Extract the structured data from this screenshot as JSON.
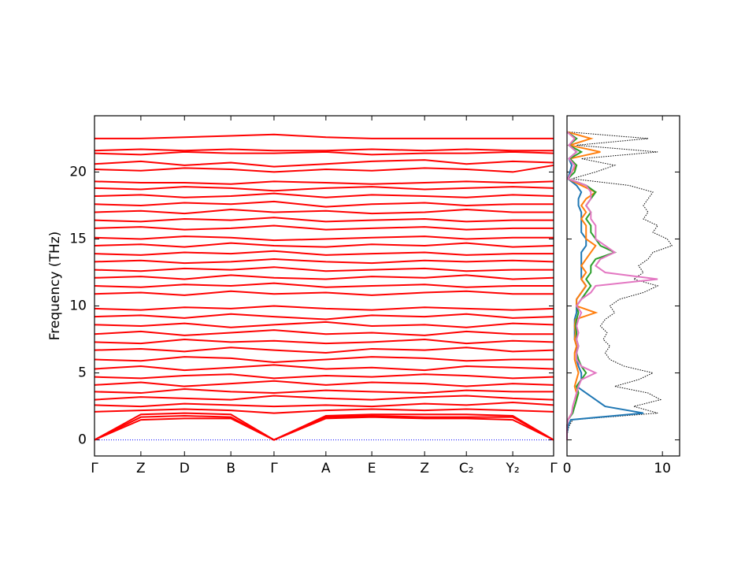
{
  "chart_data": [
    {
      "type": "line",
      "ylabel": "Frequency (THz)",
      "color": "#ff0000",
      "zero_line_color": "#0000ff",
      "x": [
        0,
        0.101,
        0.196,
        0.297,
        0.391,
        0.504,
        0.604,
        0.719,
        0.81,
        0.911,
        1
      ],
      "xlim": [
        0,
        1
      ],
      "xticks": [
        {
          "value": 0,
          "label": "Γ"
        },
        {
          "value": 0.101,
          "label": "Z"
        },
        {
          "value": 0.196,
          "label": "D"
        },
        {
          "value": 0.297,
          "label": "B"
        },
        {
          "value": 0.391,
          "label": "Γ"
        },
        {
          "value": 0.504,
          "label": "A"
        },
        {
          "value": 0.604,
          "label": "E"
        },
        {
          "value": 0.719,
          "label": "Z"
        },
        {
          "value": 0.81,
          "label": "C₂"
        },
        {
          "value": 0.911,
          "label": "Y₂"
        },
        {
          "value": 1,
          "label": "Γ"
        }
      ],
      "ylim": [
        -1.2,
        24.2
      ],
      "yticks": [
        0,
        5,
        10,
        15,
        20
      ],
      "yticklabels": true,
      "series": [
        {
          "values": [
            0,
            1.5,
            1.6,
            1.6,
            0,
            1.6,
            1.7,
            1.6,
            1.6,
            1.5,
            0
          ]
        },
        {
          "values": [
            0,
            1.7,
            1.8,
            1.7,
            0,
            1.7,
            1.8,
            1.7,
            1.7,
            1.7,
            0
          ]
        },
        {
          "values": [
            0,
            1.9,
            2.0,
            1.9,
            0,
            1.8,
            1.9,
            1.9,
            1.9,
            1.8,
            0
          ]
        },
        {
          "values": [
            2.1,
            2.2,
            2.3,
            2.2,
            2.0,
            2.2,
            2.3,
            2.2,
            2.3,
            2.2,
            2.1
          ]
        },
        {
          "values": [
            2.6,
            2.5,
            2.7,
            2.6,
            2.5,
            2.6,
            2.5,
            2.7,
            2.6,
            2.8,
            2.6
          ]
        },
        {
          "values": [
            3.0,
            3.2,
            3.1,
            3.0,
            3.3,
            3.1,
            3.0,
            3.2,
            3.3,
            3.1,
            3.0
          ]
        },
        {
          "values": [
            3.6,
            3.5,
            3.8,
            3.6,
            3.5,
            3.7,
            3.6,
            3.5,
            3.7,
            3.6,
            3.6
          ]
        },
        {
          "values": [
            4.1,
            4.3,
            4.0,
            4.2,
            4.4,
            4.1,
            4.3,
            4.2,
            4.0,
            4.2,
            4.1
          ]
        },
        {
          "values": [
            4.7,
            4.6,
            4.8,
            4.9,
            4.6,
            4.8,
            4.7,
            4.9,
            4.8,
            4.6,
            4.7
          ]
        },
        {
          "values": [
            5.3,
            5.5,
            5.2,
            5.4,
            5.6,
            5.3,
            5.4,
            5.2,
            5.5,
            5.4,
            5.3
          ]
        },
        {
          "values": [
            6.0,
            5.9,
            6.2,
            6.1,
            5.8,
            6.0,
            6.2,
            6.1,
            5.9,
            6.0,
            6.0
          ]
        },
        {
          "values": [
            6.7,
            6.8,
            6.6,
            6.9,
            6.7,
            6.5,
            6.8,
            6.7,
            6.9,
            6.6,
            6.7
          ]
        },
        {
          "values": [
            7.3,
            7.2,
            7.5,
            7.3,
            7.4,
            7.2,
            7.3,
            7.5,
            7.2,
            7.4,
            7.3
          ]
        },
        {
          "values": [
            7.9,
            8.1,
            7.8,
            8.0,
            8.2,
            7.9,
            8.0,
            7.8,
            8.1,
            7.9,
            7.9
          ]
        },
        {
          "values": [
            8.6,
            8.5,
            8.7,
            8.4,
            8.6,
            8.8,
            8.5,
            8.6,
            8.4,
            8.7,
            8.6
          ]
        },
        {
          "values": [
            9.2,
            9.3,
            9.1,
            9.4,
            9.2,
            9.0,
            9.3,
            9.2,
            9.4,
            9.1,
            9.2
          ]
        },
        {
          "values": [
            9.8,
            9.7,
            9.9,
            9.8,
            10.0,
            9.8,
            9.7,
            9.9,
            9.8,
            9.7,
            9.8
          ]
        },
        {
          "values": [
            10.9,
            11.0,
            10.8,
            11.1,
            10.9,
            11.0,
            10.8,
            11.0,
            11.1,
            10.9,
            10.9
          ]
        },
        {
          "values": [
            11.5,
            11.4,
            11.6,
            11.5,
            11.7,
            11.4,
            11.5,
            11.6,
            11.4,
            11.5,
            11.5
          ]
        },
        {
          "values": [
            12.1,
            12.2,
            12.0,
            12.3,
            12.1,
            12.0,
            12.2,
            12.1,
            12.3,
            12.0,
            12.1
          ]
        },
        {
          "values": [
            12.7,
            12.6,
            12.8,
            12.7,
            12.9,
            12.6,
            12.7,
            12.8,
            12.6,
            12.7,
            12.7
          ]
        },
        {
          "values": [
            13.3,
            13.4,
            13.2,
            13.3,
            13.5,
            13.3,
            13.2,
            13.4,
            13.3,
            13.4,
            13.3
          ]
        },
        {
          "values": [
            13.9,
            13.8,
            14.0,
            13.9,
            14.1,
            13.8,
            13.9,
            14.0,
            13.8,
            13.9,
            13.9
          ]
        },
        {
          "values": [
            14.5,
            14.6,
            14.4,
            14.7,
            14.5,
            14.4,
            14.6,
            14.5,
            14.7,
            14.4,
            14.5
          ]
        },
        {
          "values": [
            15.1,
            15.0,
            15.2,
            15.1,
            14.9,
            15.0,
            15.1,
            15.2,
            15.0,
            15.1,
            15.1
          ]
        },
        {
          "values": [
            15.8,
            15.9,
            15.7,
            15.8,
            16.0,
            15.7,
            15.8,
            15.9,
            15.7,
            15.8,
            15.8
          ]
        },
        {
          "values": [
            16.4,
            16.3,
            16.5,
            16.4,
            16.6,
            16.3,
            16.4,
            16.5,
            16.3,
            16.4,
            16.4
          ]
        },
        {
          "values": [
            17.0,
            17.1,
            16.9,
            17.2,
            17.0,
            17.1,
            16.9,
            17.0,
            17.2,
            17.0,
            17.0
          ]
        },
        {
          "values": [
            17.6,
            17.5,
            17.7,
            17.6,
            17.8,
            17.4,
            17.6,
            17.7,
            17.5,
            17.6,
            17.6
          ]
        },
        {
          "values": [
            18.2,
            18.3,
            18.1,
            18.2,
            18.4,
            18.1,
            18.3,
            18.2,
            18.1,
            18.3,
            18.2
          ]
        },
        {
          "values": [
            18.8,
            18.7,
            18.9,
            18.8,
            18.6,
            18.8,
            18.9,
            18.7,
            18.8,
            18.9,
            18.8
          ]
        },
        {
          "values": [
            19.3,
            19.2,
            19.2,
            19.1,
            19.3,
            19.2,
            19.1,
            19.2,
            19.3,
            19.2,
            19.3
          ]
        },
        {
          "values": [
            20.2,
            20.1,
            20.3,
            20.2,
            20.0,
            20.2,
            20.1,
            20.3,
            20.2,
            20.0,
            20.5
          ]
        },
        {
          "values": [
            20.6,
            20.8,
            20.5,
            20.7,
            20.4,
            20.6,
            20.8,
            20.9,
            20.6,
            20.8,
            20.7
          ]
        },
        {
          "values": [
            21.4,
            21.3,
            21.5,
            21.4,
            21.4,
            21.5,
            21.3,
            21.4,
            21.4,
            21.5,
            21.4
          ]
        },
        {
          "values": [
            21.6,
            21.7,
            21.6,
            21.7,
            21.6,
            21.6,
            21.7,
            21.6,
            21.7,
            21.6,
            21.6
          ]
        },
        {
          "values": [
            22.5,
            22.5,
            22.6,
            22.7,
            22.8,
            22.6,
            22.5,
            22.5,
            22.5,
            22.5,
            22.5
          ]
        }
      ]
    },
    {
      "type": "line",
      "orientation": "horizontal",
      "y": [
        0,
        0.5,
        1,
        1.5,
        2,
        2.5,
        3,
        3.5,
        4,
        4.5,
        5,
        5.5,
        6,
        6.5,
        7,
        7.5,
        8,
        8.5,
        9,
        9.5,
        10,
        10.5,
        11,
        11.5,
        12,
        12.5,
        13,
        13.5,
        14,
        14.5,
        15,
        15.5,
        16,
        16.5,
        17,
        17.5,
        18,
        18.5,
        19,
        19.5,
        20,
        20.5,
        21,
        21.5,
        22,
        22.5,
        23
      ],
      "xlim": [
        0,
        11.8
      ],
      "xticks": [
        0,
        10
      ],
      "ylim": [
        -1.2,
        24.2
      ],
      "yticks": [
        0,
        5,
        10,
        15,
        20
      ],
      "yticklabels": false,
      "series": [
        {
          "color": "#000000",
          "style": "dotted",
          "values": [
            0,
            0.05,
            0.2,
            0.6,
            9.5,
            7,
            9.8,
            8.5,
            5,
            7.5,
            9,
            6,
            4.5,
            4,
            4.5,
            3.8,
            4.2,
            3.5,
            4,
            5,
            4.5,
            5.5,
            8,
            9.5,
            7,
            8,
            7.5,
            8.5,
            9,
            11,
            10.5,
            9,
            9.5,
            8,
            8.5,
            8,
            8.5,
            9,
            6.5,
            0.5,
            3,
            5,
            1.5,
            9.5,
            1,
            8.5,
            0
          ]
        },
        {
          "color": "#1f77b4",
          "style": "solid",
          "values": [
            0,
            0,
            0.1,
            0.4,
            8,
            4,
            3,
            2,
            1,
            1.5,
            1.5,
            1.2,
            1,
            1,
            1,
            0.8,
            0.8,
            0.8,
            0.8,
            1,
            1,
            1,
            1.5,
            2,
            1.5,
            1.5,
            1.5,
            1.5,
            1.5,
            2,
            2,
            1.5,
            1.5,
            1.5,
            1.5,
            1.2,
            1.2,
            1.5,
            1,
            0.1,
            0.3,
            0.5,
            0.2,
            1,
            0.2,
            1,
            0
          ]
        },
        {
          "color": "#ff7f0e",
          "style": "solid",
          "values": [
            0,
            0,
            0,
            0.1,
            0.5,
            0.8,
            1,
            1,
            0.8,
            1,
            1.2,
            1,
            0.8,
            0.8,
            1,
            0.8,
            0.9,
            0.8,
            0.9,
            3,
            1,
            1,
            1.5,
            2,
            1.5,
            2,
            1.5,
            2,
            2.5,
            3,
            2,
            2,
            2,
            1.5,
            2,
            1.5,
            2,
            3,
            1.5,
            0.1,
            0.5,
            1,
            0.3,
            3.5,
            0.3,
            2.5,
            0
          ]
        },
        {
          "color": "#2ca02c",
          "style": "solid",
          "values": [
            0,
            0,
            0,
            0.1,
            0.6,
            0.8,
            1,
            1.2,
            1,
            1.5,
            2,
            1.5,
            1.2,
            1,
            1.2,
            1,
            1,
            0.9,
            1,
            1.2,
            1,
            1.5,
            2,
            2.5,
            2,
            2.5,
            2.5,
            3,
            5,
            3.5,
            3,
            2.5,
            2.5,
            2,
            2.5,
            2,
            2.5,
            3,
            2,
            0.1,
            0.8,
            1,
            0.3,
            1.5,
            0.2,
            1,
            0
          ]
        },
        {
          "color": "#e377c2",
          "style": "solid",
          "values": [
            0,
            0,
            0,
            0.1,
            0.5,
            0.6,
            0.8,
            1,
            1.2,
            1.5,
            3,
            1.5,
            1,
            1,
            1.2,
            1,
            1.2,
            1,
            1.2,
            1.5,
            1,
            1.5,
            2.5,
            3,
            9.5,
            4,
            3,
            3.5,
            5,
            4,
            3,
            3,
            3,
            2.5,
            2.5,
            2,
            2.5,
            2.5,
            2,
            0.1,
            0.5,
            0.8,
            0.2,
            1,
            0.2,
            0.8,
            0
          ]
        }
      ]
    }
  ]
}
